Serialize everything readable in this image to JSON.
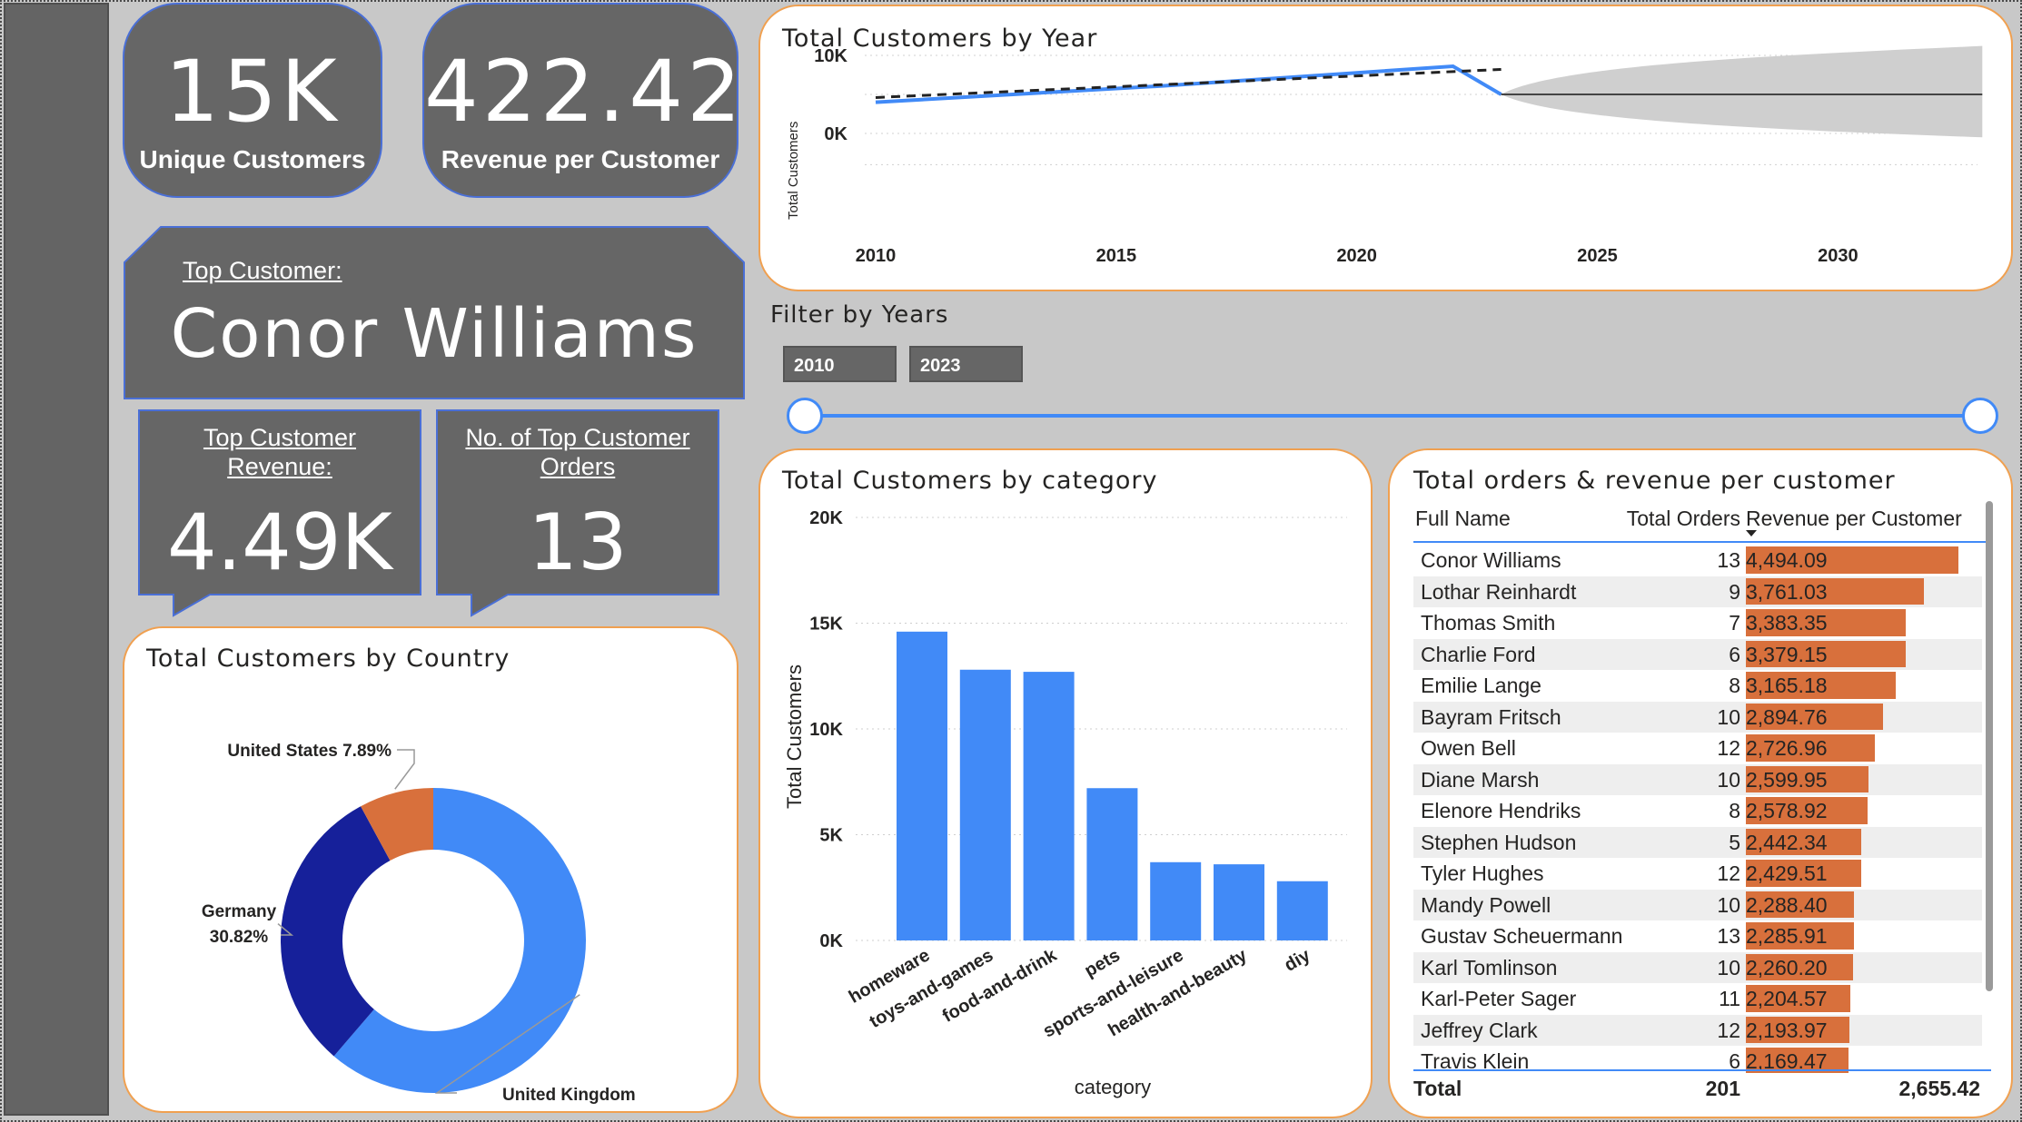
{
  "kpis": {
    "unique_customers": {
      "value": "15K",
      "label": "Unique Customers"
    },
    "revenue_per_customer": {
      "value": "422.42",
      "label": "Revenue per Customer"
    }
  },
  "top_customer": {
    "heading": "Top Customer:",
    "name": "Conor Williams"
  },
  "top_customer_revenue": {
    "heading_line1": "Top Customer",
    "heading_line2": "Revenue:",
    "value": "4.49K"
  },
  "top_customer_orders": {
    "heading_line1": "No. of Top Customer",
    "heading_line2": "Orders",
    "value": "13"
  },
  "filter": {
    "title": "Filter by Years",
    "start": "2010",
    "end": "2023",
    "start_fraction": 0.0,
    "end_fraction": 1.0
  },
  "colors": {
    "accent_blue": "#418af7",
    "dark_blue": "#16209a",
    "orange": "#d8703c",
    "card_border": "#f0a050",
    "tile_grey": "#666666"
  },
  "chart_data": [
    {
      "id": "customers_by_year",
      "type": "line",
      "title": "Total Customers by Year",
      "ylabel": "Total Customers",
      "xlabel": "",
      "xlim": [
        2010,
        2033
      ],
      "ylim": [
        -4000,
        12000
      ],
      "x_ticks": [
        "2010",
        "2015",
        "2020",
        "2025",
        "2030"
      ],
      "y_ticks": [
        "0K",
        "10K"
      ],
      "series": [
        {
          "values": [
            [
              2010,
              4000
            ],
            [
              2016,
              6100
            ],
            [
              2022,
              8600
            ],
            [
              2023,
              5000
            ]
          ]
        },
        {
          "values": [
            [
              2010,
              4600
            ],
            [
              2023,
              8200
            ]
          ],
          "style": "trend-dashed"
        },
        {
          "values": [
            [
              2023,
              5000
            ],
            [
              2033,
              5000
            ]
          ],
          "style": "forecast"
        }
      ],
      "forecast_band": {
        "x": [
          2023,
          2033
        ],
        "lower_end": -500,
        "upper_end": 11200
      }
    },
    {
      "id": "customers_by_category",
      "type": "bar",
      "title": "Total Customers by category",
      "xlabel": "category",
      "ylabel": "Total Customers",
      "ylim": [
        0,
        20000
      ],
      "y_ticks": [
        "0K",
        "5K",
        "10K",
        "15K",
        "20K"
      ],
      "categories": [
        "homeware",
        "toys-and-games",
        "food-and-drink",
        "pets",
        "sports-and-leisure",
        "health-and-beauty",
        "diy"
      ],
      "values": [
        14600,
        12800,
        12700,
        7200,
        3700,
        3600,
        2800
      ]
    },
    {
      "id": "customers_by_country",
      "type": "pie",
      "title": "Total Customers by Country",
      "categories": [
        "United Kingdom",
        "Germany",
        "United States"
      ],
      "values": [
        61.3,
        30.82,
        7.89
      ],
      "labels": [
        "61.3%",
        "30.82%",
        "7.89%"
      ]
    },
    {
      "id": "orders_revenue_per_customer",
      "type": "table",
      "title": "Total orders & revenue per customer",
      "columns": [
        "Full Name",
        "Total Orders",
        "Revenue per Customer"
      ],
      "rows": [
        [
          "Conor Williams",
          "13",
          "4,494.09"
        ],
        [
          "Lothar Reinhardt",
          "9",
          "3,761.03"
        ],
        [
          "Thomas Smith",
          "7",
          "3,383.35"
        ],
        [
          "Charlie Ford",
          "6",
          "3,379.15"
        ],
        [
          "Emilie Lange",
          "8",
          "3,165.18"
        ],
        [
          "Bayram Fritsch",
          "10",
          "2,894.76"
        ],
        [
          "Owen Bell",
          "12",
          "2,726.96"
        ],
        [
          "Diane Marsh",
          "10",
          "2,599.95"
        ],
        [
          "Elenore Hendriks",
          "8",
          "2,578.92"
        ],
        [
          "Stephen Hudson",
          "5",
          "2,442.34"
        ],
        [
          "Tyler Hughes",
          "12",
          "2,429.51"
        ],
        [
          "Mandy Powell",
          "10",
          "2,288.40"
        ],
        [
          "Gustav Scheuermann",
          "13",
          "2,285.91"
        ],
        [
          "Karl Tomlinson",
          "10",
          "2,260.20"
        ],
        [
          "Karl-Peter Sager",
          "11",
          "2,204.57"
        ],
        [
          "Jeffrey Clark",
          "12",
          "2,193.97"
        ],
        [
          "Travis Klein",
          "6",
          "2,169.47"
        ]
      ],
      "revenue_values": [
        4494.09,
        3761.03,
        3383.35,
        3379.15,
        3165.18,
        2894.76,
        2726.96,
        2599.95,
        2578.92,
        2442.34,
        2429.51,
        2288.4,
        2285.91,
        2260.2,
        2204.57,
        2193.97,
        2169.47
      ],
      "total": {
        "label": "Total",
        "orders": "201",
        "revenue": "2,655.42"
      }
    }
  ]
}
